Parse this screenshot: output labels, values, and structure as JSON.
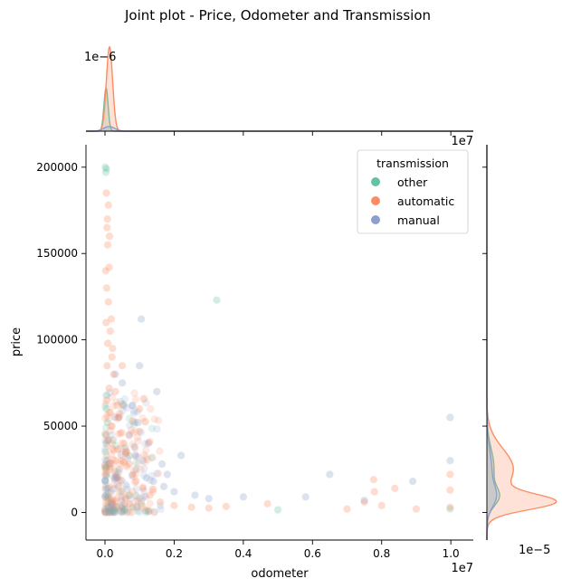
{
  "chart_data": {
    "type": "scatter",
    "title": "Joint plot - Price, Odometer and Transmission",
    "xlabel": "odometer",
    "ylabel": "price",
    "x_offset_label": "1e7",
    "x_unit": 10000000,
    "xlim": [
      -550000,
      10650000
    ],
    "ylim": [
      -16000,
      213000
    ],
    "x_ticks": [
      0,
      2000000,
      4000000,
      6000000,
      8000000,
      10000000
    ],
    "x_tick_labels": [
      "0.0",
      "0.2",
      "0.4",
      "0.6",
      "0.8",
      "1.0"
    ],
    "y_ticks": [
      0,
      50000,
      100000,
      150000,
      200000
    ],
    "y_tick_labels": [
      "0",
      "50000",
      "100000",
      "150000",
      "200000"
    ],
    "legend": {
      "title": "transmission",
      "position": "top-right",
      "entries": [
        "other",
        "automatic",
        "manual"
      ]
    },
    "colors": {
      "other": "#66c2a5",
      "automatic": "#fc8d62",
      "manual": "#8da0cb"
    },
    "top_marginal": {
      "type": "kde",
      "scale_label": "1e−6",
      "ylim": [
        0,
        7.5e-07
      ],
      "series": [
        {
          "group": "other",
          "peak_x": 30000,
          "bandwidth": 60000,
          "peak_density": 3.7e-07
        },
        {
          "group": "automatic",
          "peak_x": 130000,
          "bandwidth": 90000,
          "peak_density": 7.2e-07
        },
        {
          "group": "manual",
          "peak_x": 120000,
          "bandwidth": 160000,
          "peak_density": 4e-08
        }
      ]
    },
    "right_marginal": {
      "type": "kde",
      "scale_label": "1e−5",
      "xlim": [
        0,
        4.8e-05
      ],
      "series": [
        {
          "group": "other",
          "components": [
            [
              9000,
              5500,
              0.6
            ],
            [
              26000,
              11000,
              0.4
            ]
          ],
          "peak_density": 8.15e-06
        },
        {
          "group": "automatic",
          "components": [
            [
              6000,
              4500,
              0.7
            ],
            [
              25000,
              12000,
              0.3
            ]
          ],
          "peak_density": 4.44e-05
        },
        {
          "group": "manual",
          "components": [
            [
              9000,
              6000,
              0.6
            ],
            [
              24000,
              12000,
              0.4
            ]
          ],
          "peak_density": 6.25e-06
        }
      ]
    },
    "series": [
      {
        "name": "other",
        "points": [
          [
            10000,
            200000
          ],
          [
            25000,
            197000
          ],
          [
            40000,
            199000
          ],
          [
            3230000,
            123000
          ],
          [
            15000,
            45000
          ],
          [
            30000,
            40000
          ],
          [
            10000,
            35000
          ],
          [
            50000,
            30000
          ],
          [
            20000,
            26000
          ],
          [
            60000,
            22000
          ],
          [
            15000,
            18000
          ],
          [
            80000,
            14000
          ],
          [
            30000,
            10000
          ],
          [
            100000,
            8000
          ],
          [
            200000,
            5000
          ],
          [
            350000,
            3500
          ],
          [
            500000,
            2500
          ],
          [
            800000,
            3000
          ],
          [
            5000000,
            1500
          ],
          [
            9980000,
            2000
          ],
          [
            40000,
            60000
          ],
          [
            70000,
            52000
          ]
        ]
      },
      {
        "name": "automatic",
        "points": [
          [
            500000,
            85000
          ],
          [
            1000000,
            60000
          ],
          [
            1000000,
            47000
          ],
          [
            470000,
            30000
          ],
          [
            4700000,
            5000
          ],
          [
            60000,
            165000
          ],
          [
            80000,
            155000
          ],
          [
            120000,
            142000
          ],
          [
            50000,
            130000
          ],
          [
            100000,
            122000
          ],
          [
            30000,
            110000
          ],
          [
            150000,
            105000
          ],
          [
            80000,
            98000
          ],
          [
            200000,
            90000
          ],
          [
            60000,
            85000
          ],
          [
            250000,
            80000
          ],
          [
            120000,
            72000
          ],
          [
            300000,
            70000
          ],
          [
            50000,
            65000
          ],
          [
            350000,
            62000
          ],
          [
            150000,
            58000
          ],
          [
            400000,
            55000
          ],
          [
            200000,
            50000
          ],
          [
            450000,
            46000
          ],
          [
            100000,
            42000
          ],
          [
            550000,
            40000
          ],
          [
            250000,
            36000
          ],
          [
            600000,
            34000
          ],
          [
            300000,
            30000
          ],
          [
            700000,
            28000
          ],
          [
            150000,
            25000
          ],
          [
            800000,
            22000
          ],
          [
            350000,
            20000
          ],
          [
            900000,
            18000
          ],
          [
            400000,
            15000
          ],
          [
            1100000,
            14000
          ],
          [
            500000,
            12000
          ],
          [
            1300000,
            10000
          ],
          [
            600000,
            8000
          ],
          [
            1600000,
            6000
          ],
          [
            700000,
            5000
          ],
          [
            2000000,
            4000
          ],
          [
            2500000,
            3000
          ],
          [
            3000000,
            2500
          ],
          [
            3500000,
            3500
          ],
          [
            7000000,
            2000
          ],
          [
            7500000,
            6000
          ],
          [
            8000000,
            4000
          ],
          [
            9000000,
            2000
          ],
          [
            9980000,
            3000
          ],
          [
            9980000,
            22000
          ],
          [
            9980000,
            13000
          ],
          [
            7790000,
            12000
          ],
          [
            7770000,
            19000
          ],
          [
            8380000,
            14000
          ],
          [
            40000,
            185000
          ],
          [
            100000,
            178000
          ],
          [
            70000,
            170000
          ],
          [
            180000,
            112000
          ],
          [
            220000,
            95000
          ],
          [
            130000,
            160000
          ],
          [
            20000,
            140000
          ]
        ]
      },
      {
        "name": "manual",
        "points": [
          [
            800000,
            62000
          ],
          [
            950000,
            52000
          ],
          [
            400000,
            55000
          ],
          [
            1000000,
            85000
          ],
          [
            1050000,
            112000
          ],
          [
            1500000,
            70000
          ],
          [
            1250000,
            40000
          ],
          [
            1650000,
            28000
          ],
          [
            2200000,
            33000
          ],
          [
            2600000,
            10000
          ],
          [
            3000000,
            8000
          ],
          [
            6500000,
            22000
          ],
          [
            7500000,
            7000
          ],
          [
            8900000,
            18000
          ],
          [
            9980000,
            30000
          ],
          [
            9980000,
            55000
          ],
          [
            600000,
            35000
          ],
          [
            700000,
            45000
          ],
          [
            850000,
            38000
          ],
          [
            1100000,
            30000
          ],
          [
            1200000,
            20000
          ],
          [
            1400000,
            18000
          ],
          [
            1700000,
            15000
          ],
          [
            2000000,
            12000
          ],
          [
            500000,
            75000
          ],
          [
            300000,
            80000
          ],
          [
            900000,
            25000
          ],
          [
            1800000,
            22000
          ],
          [
            4000000,
            9000
          ],
          [
            5800000,
            9000
          ]
        ]
      }
    ]
  }
}
